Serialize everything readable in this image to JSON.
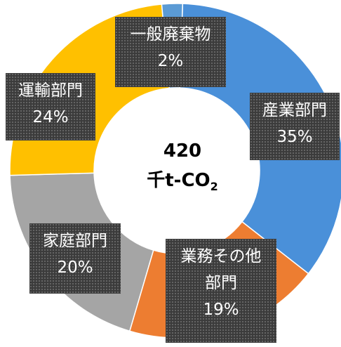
{
  "chart_data": {
    "type": "pie",
    "center_value": "420",
    "center_unit_main": "千t-CO",
    "center_unit_sub": "2",
    "slices": [
      {
        "name": "産業部門",
        "value": 35,
        "label": "35%",
        "color": "#4a90d9"
      },
      {
        "name_line1": "業務その他",
        "name_line2": "部門",
        "value": 19,
        "label": "19%",
        "color": "#ed7d31"
      },
      {
        "name": "家庭部門",
        "value": 20,
        "label": "20%",
        "color": "#a5a5a5"
      },
      {
        "name": "運輸部門",
        "value": 24,
        "label": "24%",
        "color": "#ffc000"
      },
      {
        "name": "一般廃棄物",
        "value": 2,
        "label": "2%",
        "color": "#5b9bd5"
      }
    ],
    "start_angle_deg": 2,
    "donut": true
  }
}
